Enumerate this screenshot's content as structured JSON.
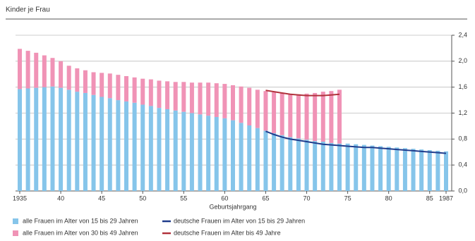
{
  "chart_data": {
    "type": "bar",
    "stacked": true,
    "title": "Kinder je Frau",
    "x_label": "Geburtsjahrgang",
    "categories": [
      "1935",
      null,
      null,
      null,
      null,
      "40",
      null,
      null,
      null,
      null,
      "45",
      null,
      null,
      null,
      null,
      "50",
      null,
      null,
      null,
      null,
      "55",
      null,
      null,
      null,
      null,
      "60",
      null,
      null,
      null,
      null,
      "65",
      null,
      null,
      null,
      null,
      "70",
      null,
      null,
      null,
      null,
      "75",
      null,
      null,
      null,
      null,
      "80",
      null,
      null,
      null,
      null,
      "85",
      null,
      "1987"
    ],
    "series": [
      {
        "name": "alle Frauen im Alter von 15 bis 29 Jahren",
        "type": "bar",
        "color": "#86c5ea",
        "values": [
          1.57,
          1.58,
          1.59,
          1.6,
          1.61,
          1.59,
          1.56,
          1.53,
          1.51,
          1.48,
          1.45,
          1.43,
          1.4,
          1.38,
          1.36,
          1.33,
          1.31,
          1.28,
          1.26,
          1.24,
          1.22,
          1.2,
          1.18,
          1.16,
          1.14,
          1.12,
          1.09,
          1.05,
          1.01,
          0.97,
          0.93,
          0.89,
          0.86,
          0.83,
          0.81,
          0.79,
          0.77,
          0.76,
          0.74,
          0.73,
          0.73,
          0.72,
          0.71,
          0.7,
          0.69,
          0.68,
          0.67,
          0.66,
          0.65,
          0.64,
          0.63,
          0.62,
          0.61
        ]
      },
      {
        "name": "alle Frauen im Alter von 30 bis 49 Jahren",
        "type": "bar",
        "color": "#f093b6",
        "values": [
          0.62,
          0.58,
          0.54,
          0.49,
          0.44,
          0.41,
          0.37,
          0.36,
          0.35,
          0.35,
          0.37,
          0.38,
          0.39,
          0.39,
          0.39,
          0.4,
          0.41,
          0.42,
          0.43,
          0.44,
          0.46,
          0.47,
          0.49,
          0.51,
          0.52,
          0.53,
          0.54,
          0.56,
          0.58,
          0.59,
          0.61,
          0.63,
          0.65,
          0.66,
          0.68,
          0.71,
          0.74,
          0.77,
          0.8,
          0.83,
          null,
          null,
          null,
          null,
          null,
          null,
          null,
          null,
          null,
          null,
          null,
          null,
          null
        ]
      },
      {
        "name": "deutsche Frauen im Alter von 15 bis 29 Jahren",
        "type": "line",
        "color": "#1f3c8c",
        "values": [
          null,
          null,
          null,
          null,
          null,
          null,
          null,
          null,
          null,
          null,
          null,
          null,
          null,
          null,
          null,
          null,
          null,
          null,
          null,
          null,
          null,
          null,
          null,
          null,
          null,
          null,
          null,
          null,
          null,
          null,
          0.92,
          0.87,
          0.83,
          0.8,
          0.78,
          0.76,
          0.74,
          0.72,
          0.71,
          0.7,
          0.69,
          0.68,
          0.67,
          0.67,
          0.66,
          0.65,
          0.64,
          0.63,
          0.62,
          0.61,
          0.6,
          0.59,
          0.58
        ]
      },
      {
        "name": "deutsche Frauen im Alter bis 49 Jahre",
        "type": "line",
        "color": "#b1323c",
        "values": [
          null,
          null,
          null,
          null,
          null,
          null,
          null,
          null,
          null,
          null,
          null,
          null,
          null,
          null,
          null,
          null,
          null,
          null,
          null,
          null,
          null,
          null,
          null,
          null,
          null,
          null,
          null,
          null,
          null,
          null,
          1.55,
          1.53,
          1.51,
          1.49,
          1.48,
          1.47,
          1.47,
          1.47,
          1.48,
          1.49,
          null,
          null,
          null,
          null,
          null,
          null,
          null,
          null,
          null,
          null,
          null,
          null,
          null
        ]
      }
    ],
    "ylim": [
      0,
      2.4
    ],
    "yticks": [
      {
        "value": 0,
        "label": "0,0"
      },
      {
        "value": 0.4,
        "label": "0,4"
      },
      {
        "value": 0.8,
        "label": "0,8"
      },
      {
        "value": 1.2,
        "label": "1,2"
      },
      {
        "value": 1.6,
        "label": "1,6"
      },
      {
        "value": 2.0,
        "label": "2,0"
      },
      {
        "value": 2.4,
        "label": "2,4"
      }
    ],
    "grid": true
  }
}
